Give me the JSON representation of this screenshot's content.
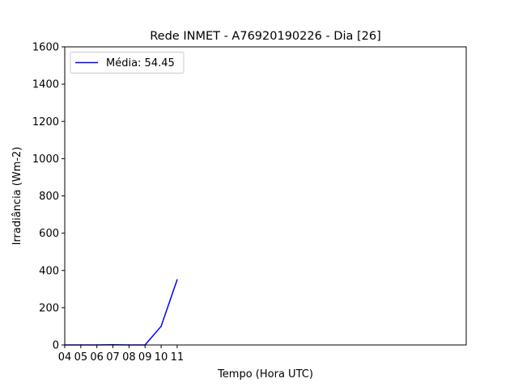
{
  "chart_data": {
    "type": "line",
    "title": "Rede INMET - A76920190226 - Dia [26]",
    "xlabel": "Tempo (Hora UTC)",
    "ylabel": "Irradiância (Wm-2)",
    "xlim": [
      4,
      29
    ],
    "ylim": [
      0,
      1600
    ],
    "x_ticks": [
      "04",
      "05",
      "06",
      "07",
      "08",
      "09",
      "10",
      "11"
    ],
    "y_ticks": [
      0,
      200,
      400,
      600,
      800,
      1000,
      1200,
      1400,
      1600
    ],
    "grid": false,
    "legend_position": "top-left",
    "series": [
      {
        "name": "Média: 54.45",
        "color": "#0000ff",
        "x": [
          4,
          5,
          6,
          7,
          8,
          9,
          10,
          11
        ],
        "y": [
          0,
          0,
          0,
          1,
          0,
          0,
          100,
          350
        ]
      }
    ]
  }
}
